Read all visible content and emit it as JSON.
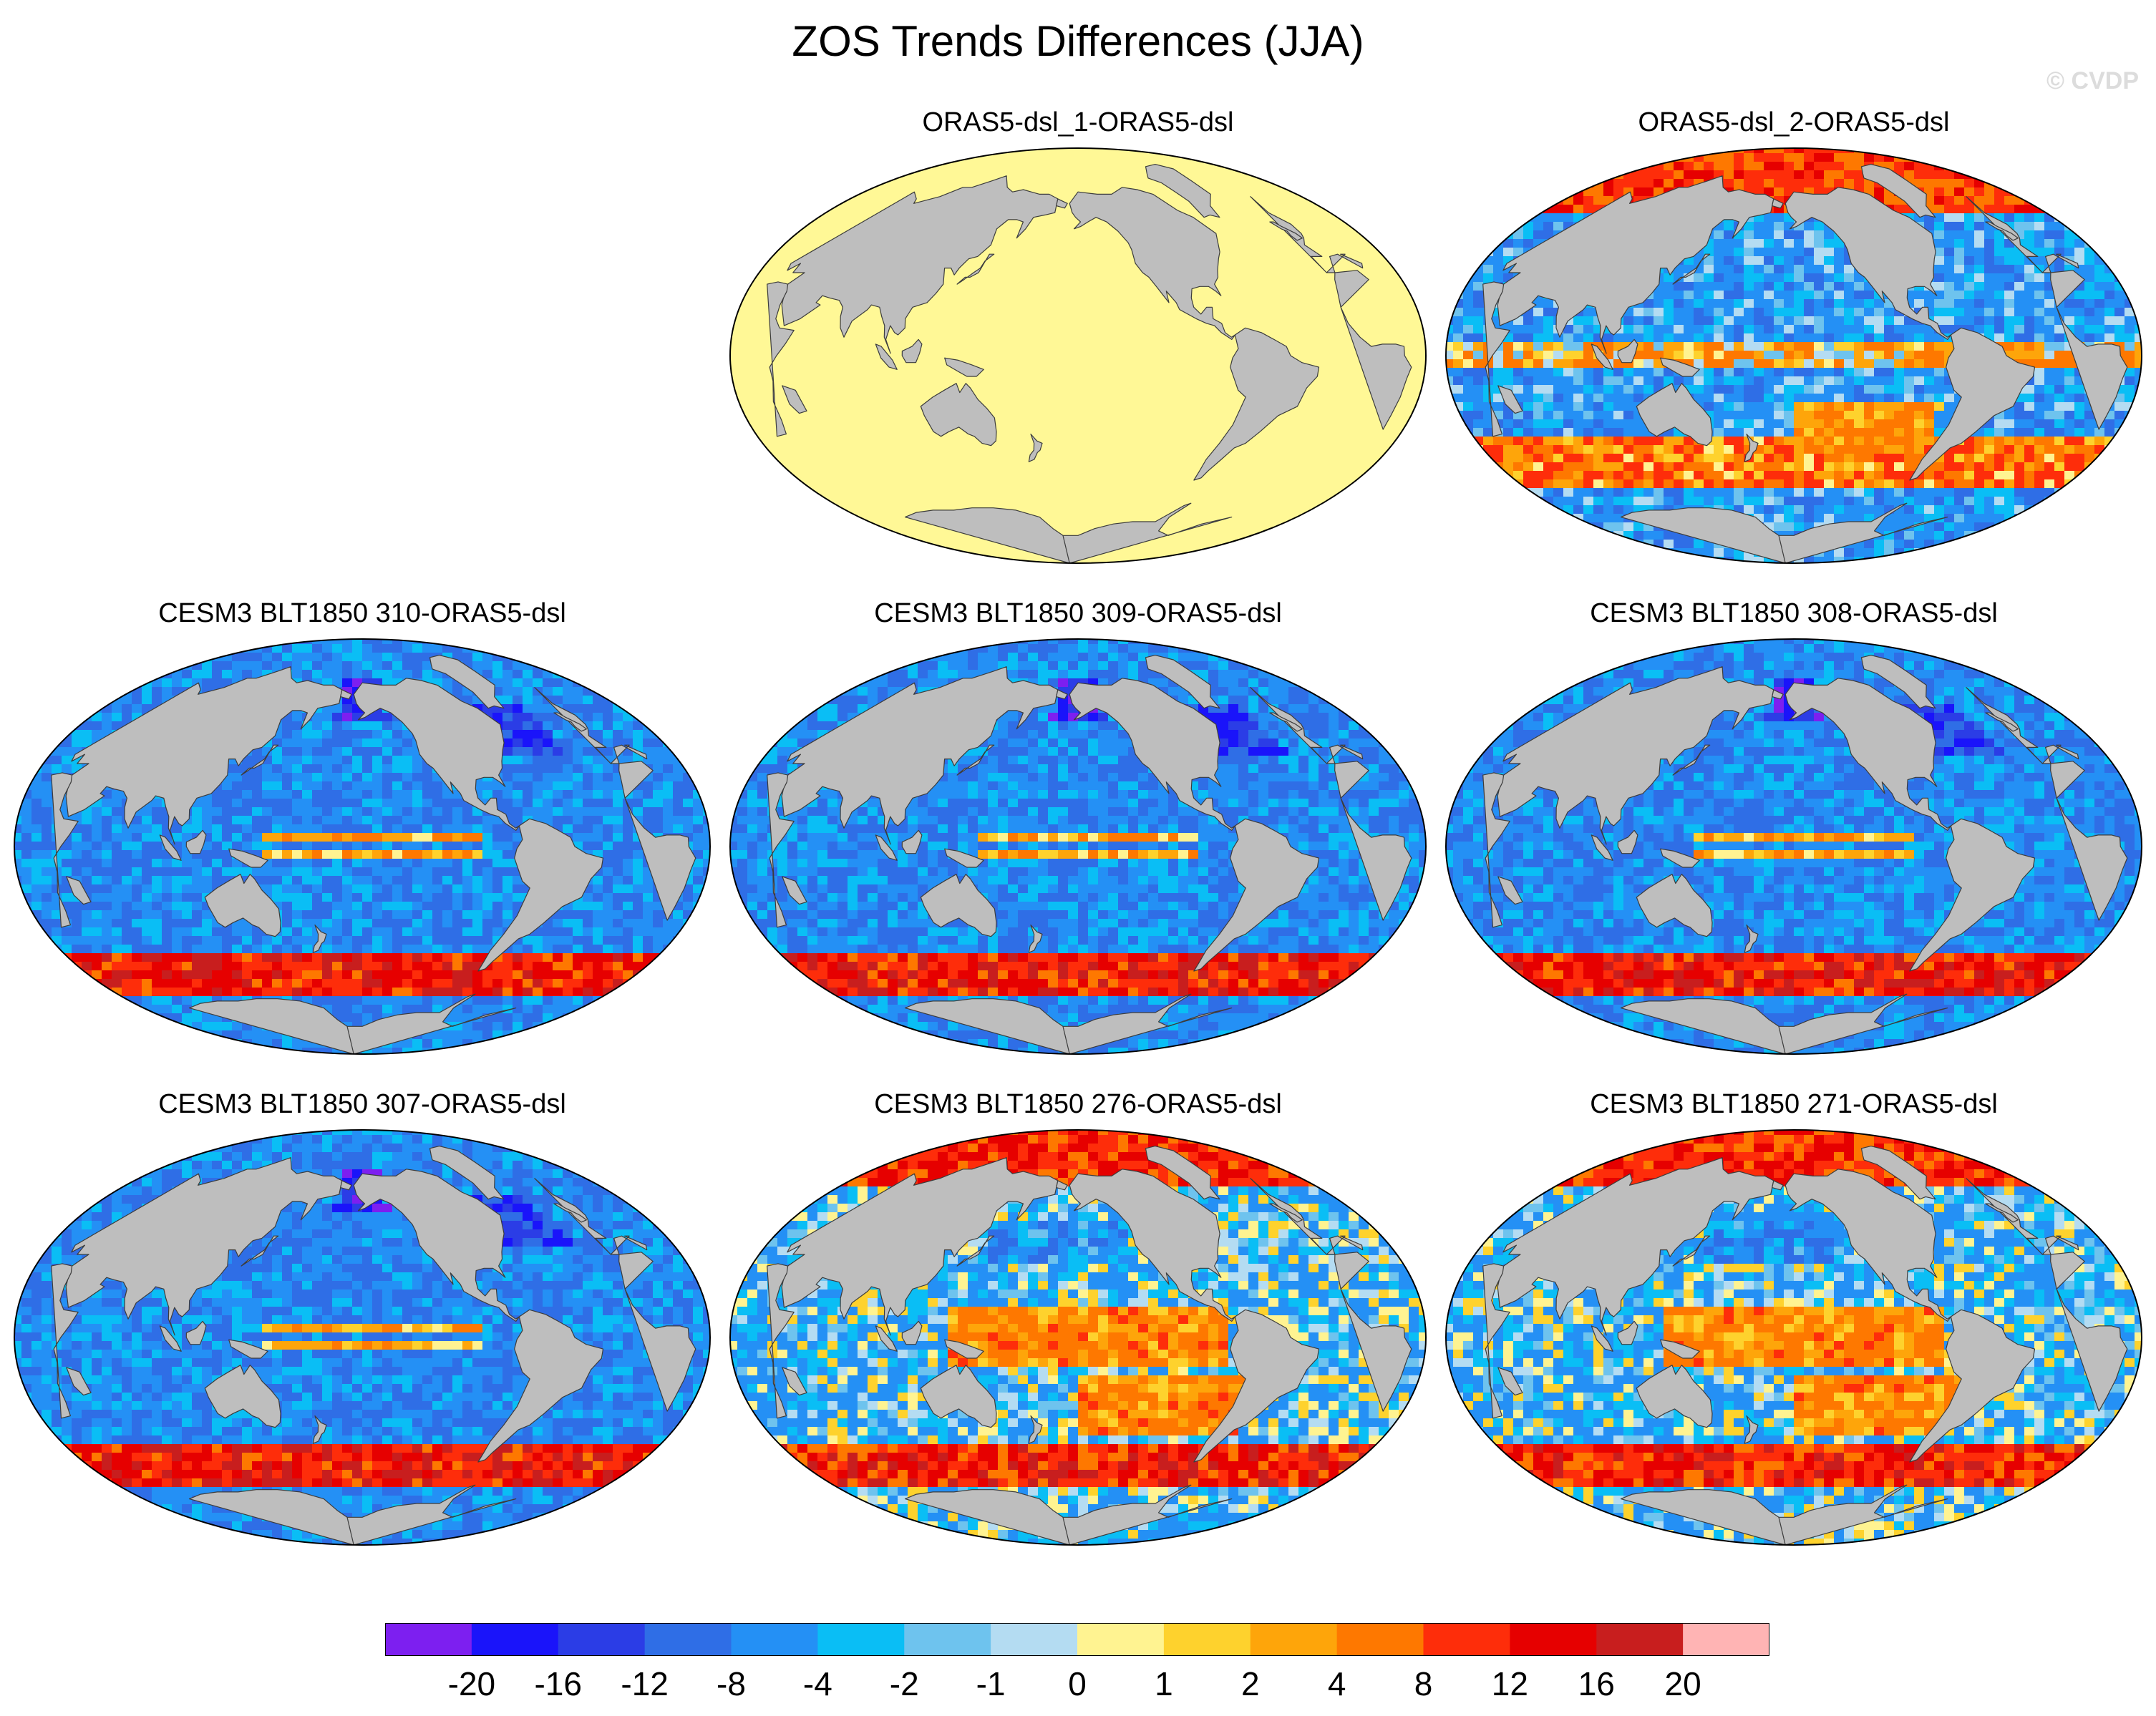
{
  "title": "ZOS Trends Differences (JJA)",
  "watermark": "© CVDP",
  "panels": [
    {
      "label": "ORAS5-dsl_1-ORAS5-dsl",
      "pattern": "uniform"
    },
    {
      "label": "ORAS5-dsl_2-ORAS5-dsl",
      "pattern": "mixed"
    },
    {
      "label": "CESM3 BLT1850 310-ORAS5-dsl",
      "pattern": "cool"
    },
    {
      "label": "CESM3 BLT1850 309-ORAS5-dsl",
      "pattern": "cool"
    },
    {
      "label": "CESM3 BLT1850 308-ORAS5-dsl",
      "pattern": "cool"
    },
    {
      "label": "CESM3 BLT1850 307-ORAS5-dsl",
      "pattern": "cool"
    },
    {
      "label": "CESM3 BLT1850 276-ORAS5-dsl",
      "pattern": "warm"
    },
    {
      "label": "CESM3 BLT1850 271-ORAS5-dsl",
      "pattern": "warm"
    }
  ],
  "colorbar": {
    "colors": [
      "#7d1ff0",
      "#1a14fa",
      "#2b3de6",
      "#2f6ee6",
      "#2490f5",
      "#0abef5",
      "#6ec3ee",
      "#b4dcf2",
      "#fff391",
      "#fed22d",
      "#fea50a",
      "#fe7800",
      "#fe2d0a",
      "#e60000",
      "#c81e1e",
      "#ffb4b4"
    ],
    "labels": [
      "-20",
      "-16",
      "-12",
      "-8",
      "-4",
      "-2",
      "-1",
      "0",
      "1",
      "2",
      "4",
      "8",
      "12",
      "16",
      "20"
    ]
  },
  "colors": {
    "land": "#bebebe",
    "uniform_field": "#fff896"
  }
}
